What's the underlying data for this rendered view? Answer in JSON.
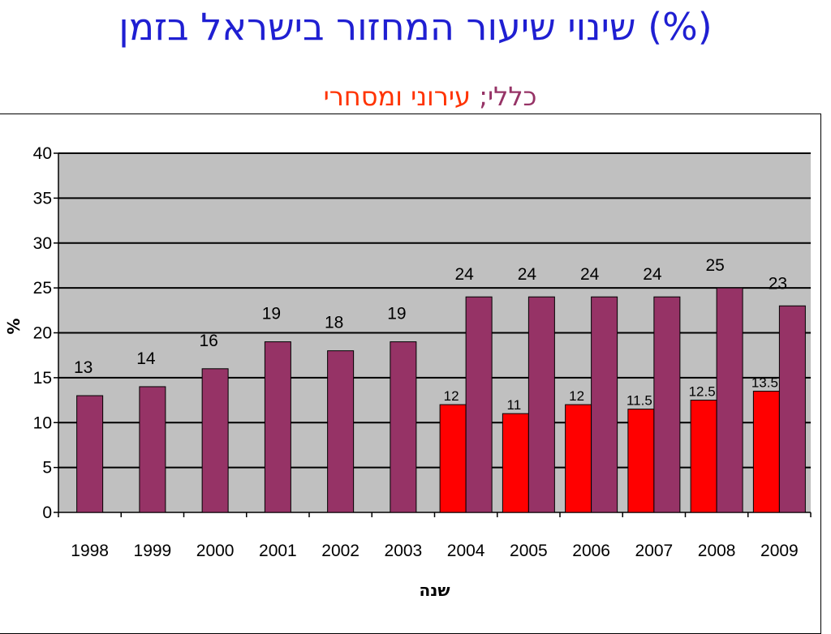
{
  "title": "שינוי שיעור המחזור בישראל בזמן (%)",
  "subtitle": {
    "left": "כללי;",
    "right": "עירוני ומסחרי"
  },
  "chart_data": {
    "type": "bar",
    "categories": [
      "1998",
      "1999",
      "2000",
      "2001",
      "2002",
      "2003",
      "2004",
      "2005",
      "2006",
      "2007",
      "2008",
      "2009"
    ],
    "series": [
      {
        "values": [
          null,
          null,
          null,
          null,
          null,
          null,
          12,
          11,
          12,
          11.5,
          12.5,
          13.5
        ],
        "color": "#ff0000"
      },
      {
        "values": [
          13,
          14,
          16,
          19,
          18,
          19,
          24,
          24,
          24,
          24,
          25,
          23
        ],
        "color": "#963366"
      }
    ],
    "xlabel": "שנה",
    "ylabel": "%",
    "ylim": [
      0,
      40
    ],
    "yticks": [
      0,
      5,
      10,
      15,
      20,
      25,
      30,
      35,
      40
    ],
    "plot_background": "#c0c0c0",
    "grid": true,
    "legend": "none"
  }
}
